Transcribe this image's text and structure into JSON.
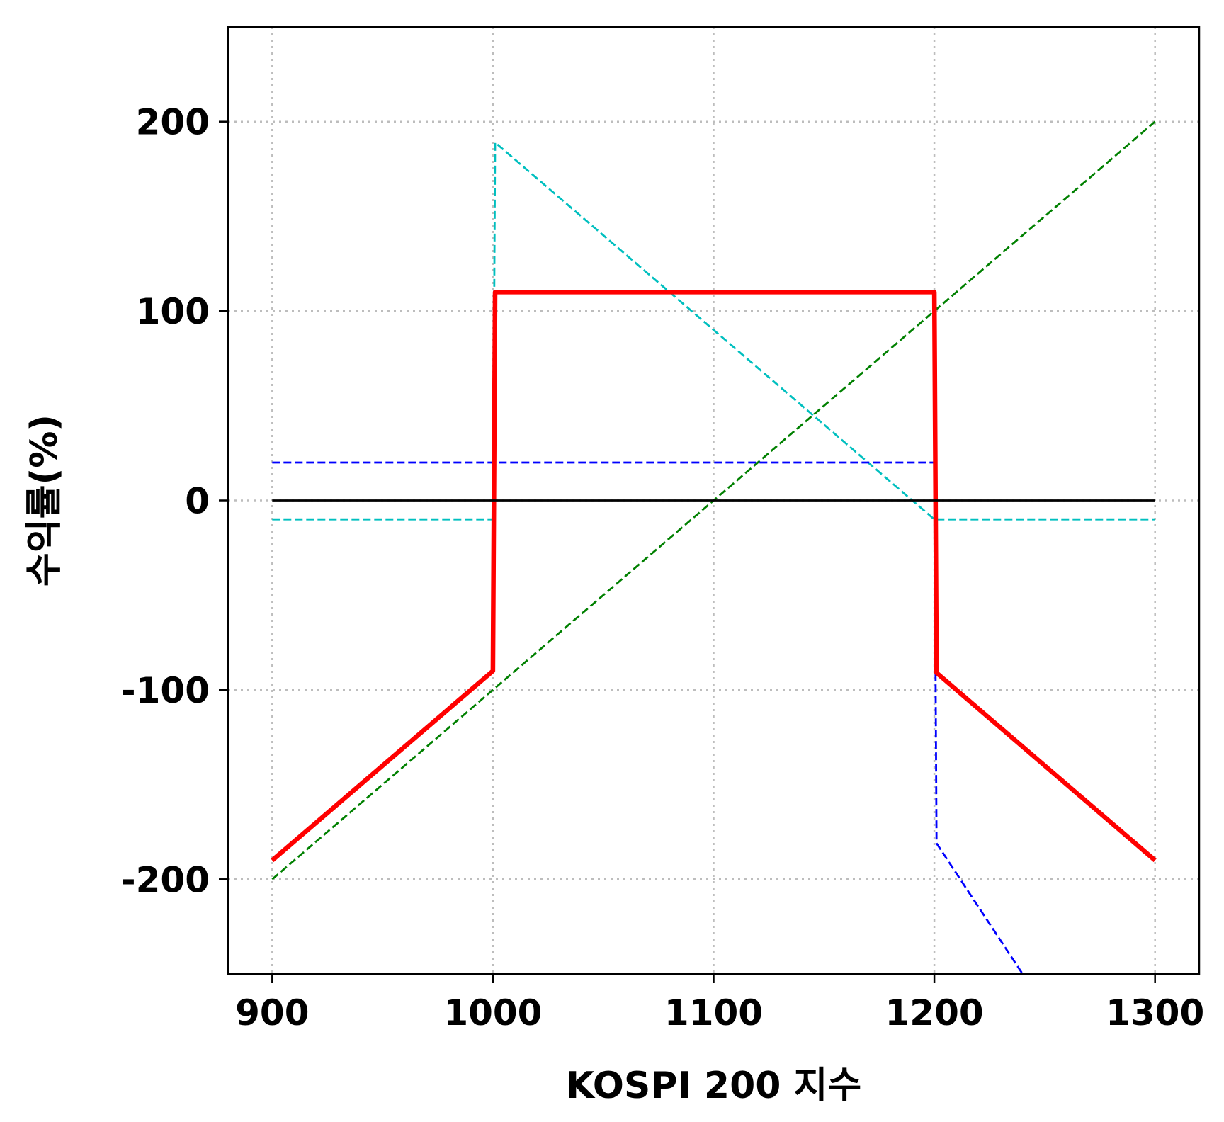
{
  "chart_data": {
    "type": "line",
    "title": "",
    "xlabel": "KOSPI 200 지수",
    "ylabel": "수익률(%)",
    "xlim": [
      880,
      1320
    ],
    "ylim": [
      -250,
      250
    ],
    "xticks": [
      900,
      1000,
      1100,
      1200,
      1300
    ],
    "xtick_labels": [
      "900",
      "1000",
      "1100",
      "1200",
      "1300"
    ],
    "yticks": [
      -200,
      -100,
      0,
      100,
      200
    ],
    "ytick_labels": [
      "-200",
      "-100",
      "0",
      "100",
      "200"
    ],
    "grid": true,
    "legend": "none",
    "series": [
      {
        "color": "#008000",
        "style": "dashed",
        "x": [
          900,
          1300
        ],
        "y": [
          -200,
          200
        ]
      },
      {
        "color": "#00BFBF",
        "style": "dashed",
        "x": [
          900,
          1000,
          1001,
          1200,
          1201,
          1300
        ],
        "y": [
          -10,
          -10,
          189,
          -10,
          -10,
          -10
        ]
      },
      {
        "color": "#0000FF",
        "style": "dashed",
        "x": [
          900,
          1200,
          1201,
          1240
        ],
        "y": [
          20,
          20,
          -181,
          -250
        ]
      },
      {
        "color": "#FF0000",
        "style": "solid",
        "x": [
          900,
          1000,
          1001,
          1200,
          1201,
          1300
        ],
        "y": [
          -190,
          -90,
          110,
          110,
          -91,
          -190
        ]
      },
      {
        "color": "#000000",
        "style": "solid",
        "x": [
          900,
          1300
        ],
        "y": [
          0,
          0
        ]
      }
    ]
  }
}
